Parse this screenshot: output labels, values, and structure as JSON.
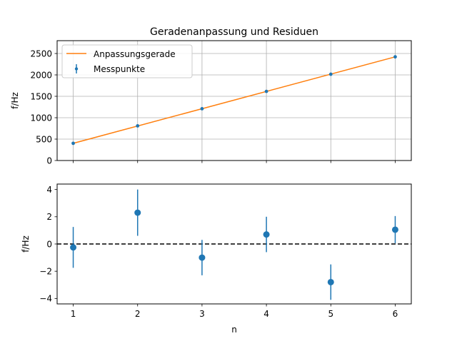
{
  "chart_data": [
    {
      "type": "line",
      "title": "Geradenanpassung und Residuen",
      "ylabel": "f/Hz",
      "xlabel": "",
      "xlim": [
        0.75,
        6.25
      ],
      "ylim": [
        0,
        2800
      ],
      "xticks": [
        1,
        2,
        3,
        4,
        5,
        6
      ],
      "yticks": [
        0,
        500,
        1000,
        1500,
        2000,
        2500
      ],
      "ytick_labels": [
        "0",
        "500",
        "1000",
        "1500",
        "2000",
        "2500"
      ],
      "grid": true,
      "legend": {
        "placement": "top-left",
        "entries": [
          "Anpassungsgerade",
          "Messpunkte"
        ]
      },
      "series": [
        {
          "name": "Anpassungsgerade",
          "kind": "line",
          "color": "#ff7f0e",
          "x": [
            1,
            6
          ],
          "y": [
            402,
            2422
          ]
        },
        {
          "name": "Messpunkte",
          "kind": "errorbar",
          "color": "#1f77b4",
          "x": [
            1,
            2,
            3,
            4,
            5,
            6
          ],
          "y": [
            402,
            810,
            1210,
            1615,
            2016,
            2422
          ]
        }
      ]
    },
    {
      "type": "scatter",
      "title": "",
      "ylabel": "f/Hz",
      "xlabel": "n",
      "xlim": [
        0.75,
        6.25
      ],
      "ylim": [
        -4.4,
        4.4
      ],
      "xticks": [
        1,
        2,
        3,
        4,
        5,
        6
      ],
      "xtick_labels": [
        "1",
        "2",
        "3",
        "4",
        "5",
        "6"
      ],
      "yticks": [
        -4,
        -2,
        0,
        2,
        4
      ],
      "ytick_labels": [
        "−4",
        "−2",
        "0",
        "2",
        "4"
      ],
      "grid": false,
      "reference_line": {
        "y": 0,
        "style": "dashed",
        "color": "#000000"
      },
      "series": [
        {
          "kind": "errorbar",
          "color": "#1f77b4",
          "x": [
            1,
            2,
            3,
            4,
            5,
            6
          ],
          "y": [
            -0.25,
            2.3,
            -1.0,
            0.7,
            -2.8,
            1.05
          ],
          "yerr": [
            1.5,
            1.7,
            1.3,
            1.3,
            1.3,
            1.0
          ]
        }
      ]
    }
  ]
}
